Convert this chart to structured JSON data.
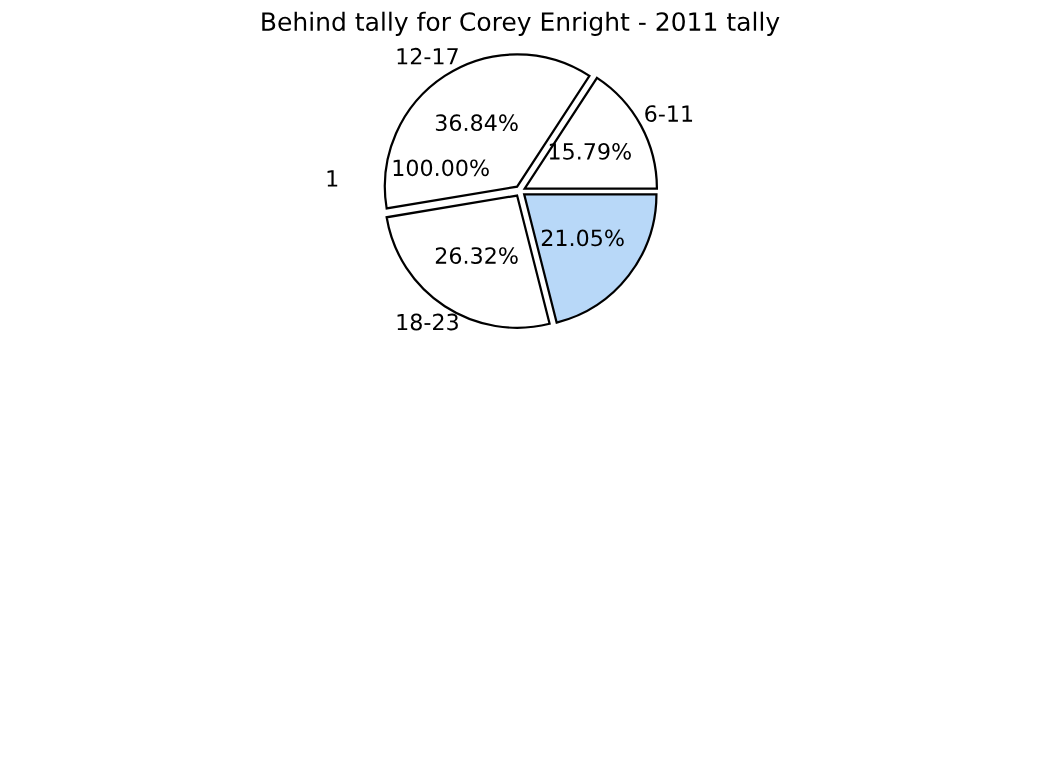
{
  "chart_data": {
    "type": "pie",
    "title": "Behind tally for Corey Enright - 2011 tally",
    "categories": [
      "6-11",
      "12-17",
      "18-23",
      null
    ],
    "values": [
      15.79,
      36.84,
      26.32,
      21.05
    ],
    "value_labels": [
      "15.79%",
      "36.84%",
      "26.32%",
      "21.05%"
    ],
    "colors": [
      "#ffffff",
      "#ffffff",
      "#ffffff",
      "#b8d8f8"
    ],
    "annotations": [
      "1",
      "100.00%"
    ]
  }
}
